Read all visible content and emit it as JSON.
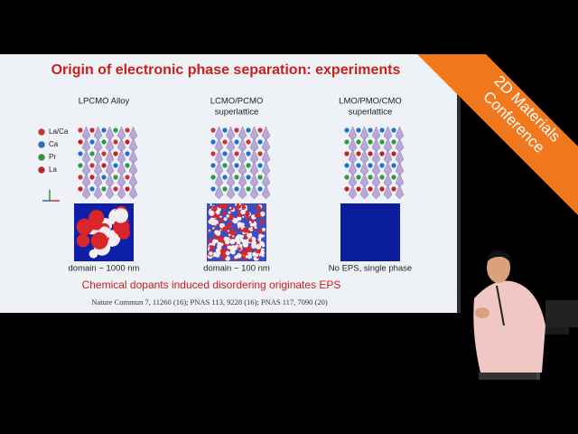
{
  "slide": {
    "title": "Origin of electronic phase separation: experiments",
    "panels": [
      {
        "heading": [
          "LPCMO Alloy"
        ],
        "caption": "domain ~ 1000 nm"
      },
      {
        "heading": [
          "LCMO/PCMO",
          "superlattice"
        ],
        "caption": "domain ~ 100 nm"
      },
      {
        "heading": [
          "LMO/PMO/CMO",
          "superlattice"
        ],
        "caption": "No EPS, single phase"
      }
    ],
    "legend": [
      "La/Ca",
      "Ca",
      "Pr",
      "La"
    ],
    "conclusion": "Chemical dopants induced disordering originates EPS",
    "reference": "Nature Commun 7, 11260 (16); PNAS 113, 9228 (16); PNAS 117, 7090 (20)"
  },
  "banner": [
    "2D Materials",
    "Conference"
  ]
}
